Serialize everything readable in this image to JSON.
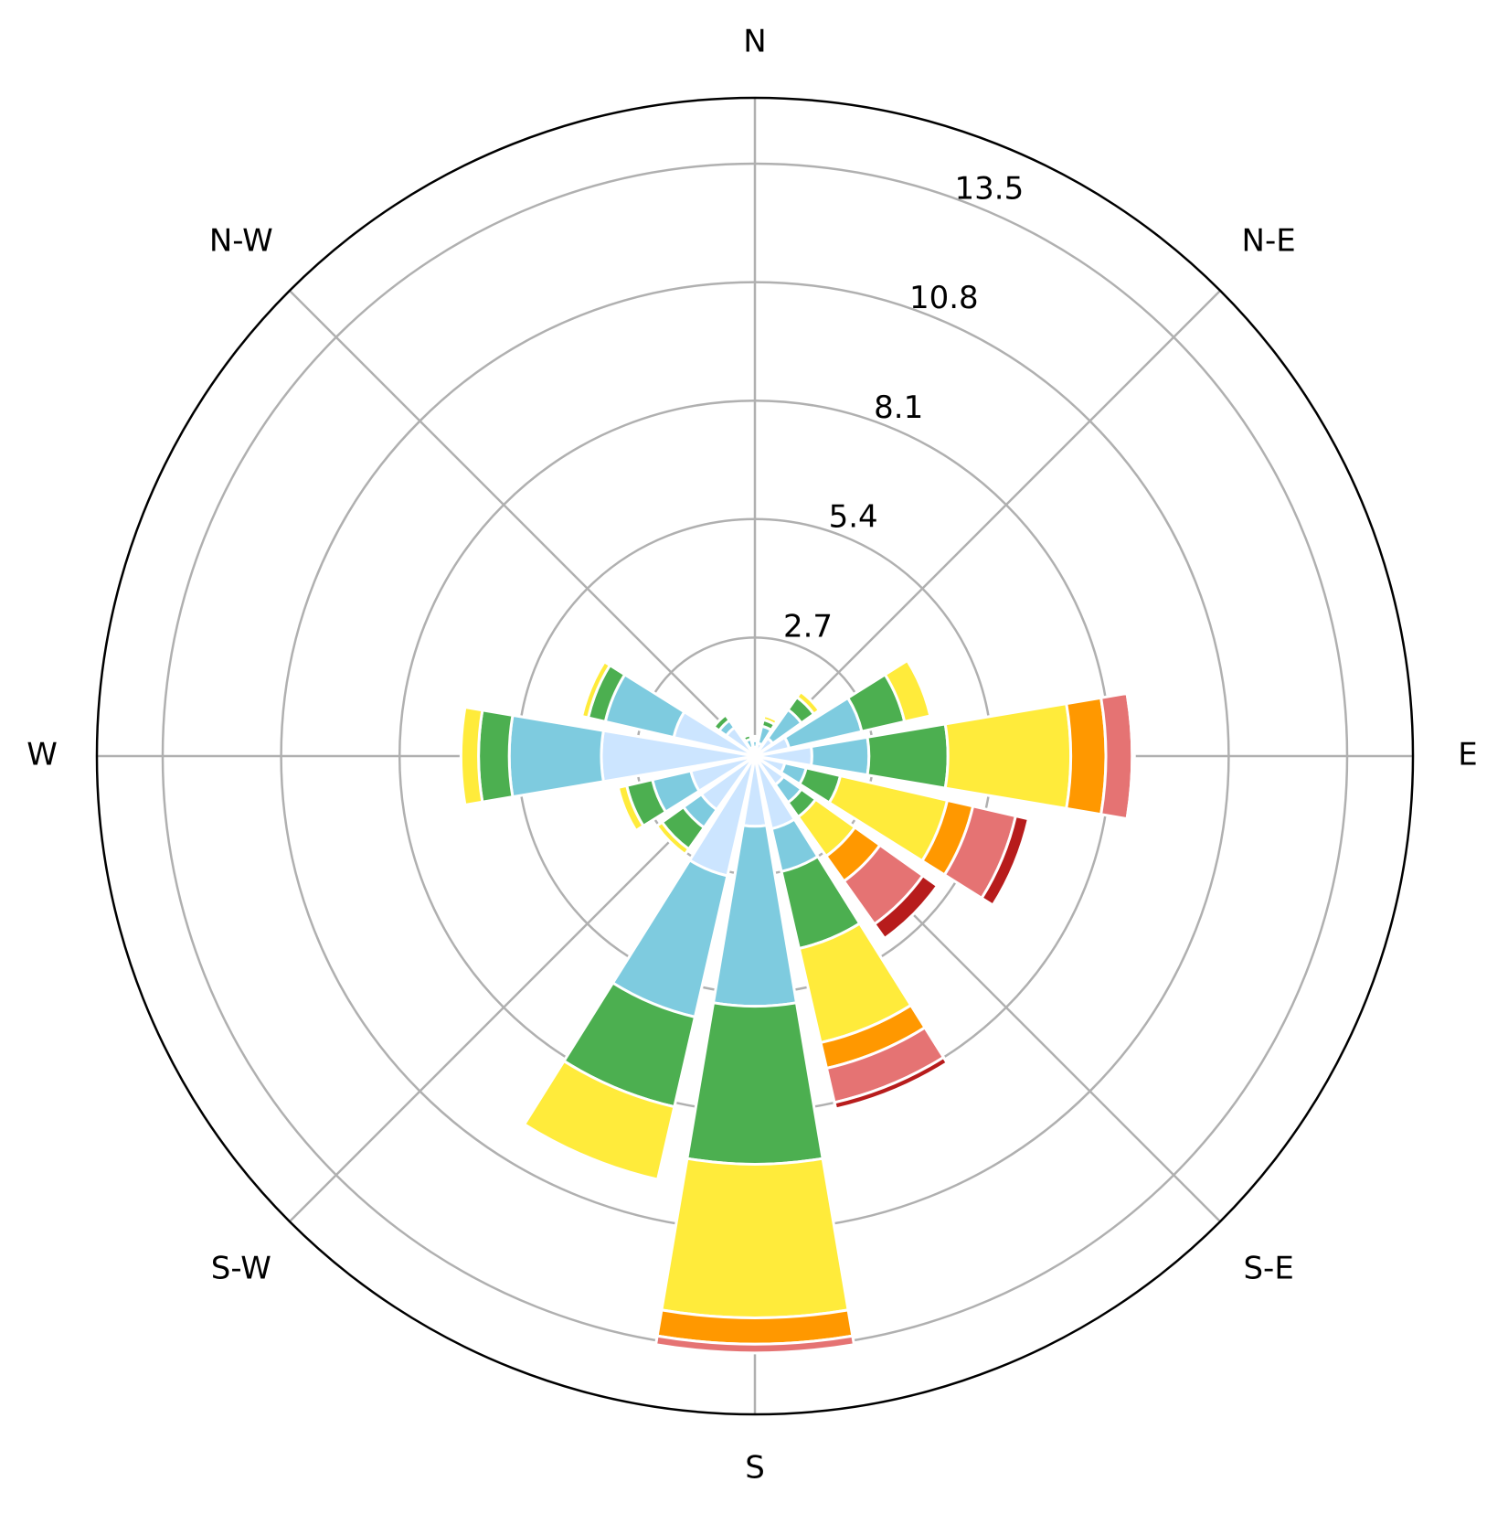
{
  "chart_data": {
    "type": "windrose",
    "direction_labels": [
      "N",
      "N-E",
      "E",
      "S-E",
      "S",
      "S-W",
      "W",
      "N-W"
    ],
    "radial_ticks": [
      "2.7",
      "5.4",
      "8.1",
      "10.8",
      "13.5"
    ],
    "radial_tick_values": [
      2.7,
      5.4,
      8.1,
      10.8,
      13.5
    ],
    "r_max": 15.0,
    "grid": true,
    "bin_colors": [
      "#cce5ff",
      "#7ecbdf",
      "#4caf50",
      "#ffeb3b",
      "#ff9800",
      "#e57373",
      "#b71c1c"
    ],
    "sectors": [
      {
        "angle": 0.0,
        "values": [
          0.2,
          0.15,
          0.05,
          0.05,
          0.0,
          0.0,
          0.0
        ]
      },
      {
        "angle": 22.5,
        "values": [
          0.3,
          0.4,
          0.15,
          0.1,
          0.0,
          0.0,
          0.0
        ]
      },
      {
        "angle": 45.0,
        "values": [
          0.5,
          0.8,
          0.35,
          0.15,
          0.0,
          0.0,
          0.0
        ]
      },
      {
        "angle": 67.5,
        "values": [
          0.8,
          1.7,
          1.0,
          0.6,
          0.0,
          0.0,
          0.0
        ]
      },
      {
        "angle": 90.0,
        "values": [
          1.3,
          1.3,
          1.8,
          2.8,
          0.8,
          0.6,
          0.05
        ]
      },
      {
        "angle": 112.5,
        "values": [
          0.7,
          0.5,
          0.8,
          2.5,
          0.6,
          1.0,
          0.3
        ]
      },
      {
        "angle": 135.0,
        "values": [
          0.8,
          0.5,
          0.4,
          1.1,
          0.7,
          1.2,
          0.4
        ]
      },
      {
        "angle": 157.5,
        "values": [
          1.7,
          1.0,
          1.8,
          2.2,
          0.6,
          0.8,
          0.15
        ]
      },
      {
        "angle": 180.0,
        "values": [
          1.6,
          4.1,
          3.6,
          3.5,
          0.6,
          0.2,
          0.0
        ]
      },
      {
        "angle": 202.5,
        "values": [
          2.8,
          3.3,
          2.1,
          1.7,
          0.0,
          0.0,
          0.0
        ]
      },
      {
        "angle": 225.0,
        "values": [
          1.5,
          0.5,
          0.6,
          0.15,
          0.0,
          0.0,
          0.0
        ]
      },
      {
        "angle": 247.5,
        "values": [
          1.5,
          0.9,
          0.6,
          0.2,
          0.0,
          0.0,
          0.0
        ]
      },
      {
        "angle": 270.0,
        "values": [
          3.5,
          2.1,
          0.7,
          0.4,
          0.0,
          0.0,
          0.0
        ]
      },
      {
        "angle": 292.5,
        "values": [
          1.9,
          1.6,
          0.4,
          0.15,
          0.0,
          0.0,
          0.0
        ]
      },
      {
        "angle": 315.0,
        "values": [
          0.8,
          0.2,
          0.15,
          0.0,
          0.0,
          0.0,
          0.0
        ]
      },
      {
        "angle": 337.5,
        "values": [
          0.2,
          0.2,
          0.1,
          0.05,
          0.0,
          0.0,
          0.0
        ]
      }
    ]
  }
}
